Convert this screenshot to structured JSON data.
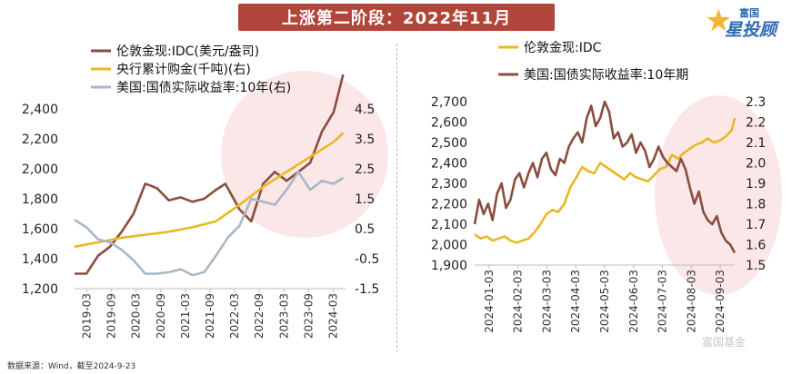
{
  "title": "上涨第二阶段：2022年11月",
  "logo": {
    "top": "富国",
    "main": "星投顾"
  },
  "source": "数据来源：Wind，截至2024-9-23",
  "watermark": "富国基金",
  "colors": {
    "brown": "#8b4e3e",
    "gold": "#e8b923",
    "gray": "#a9b7c6",
    "banner": "#b2453a",
    "highlight": "#f6c9cc"
  },
  "chart_data": [
    {
      "type": "line",
      "legend": [
        "伦敦金现:IDC(美元/盎司)",
        "央行累计购金(千吨)(右)",
        "美国:国债实际收益率:10年(右)"
      ],
      "x_ticks": [
        "2019-03",
        "2019-09",
        "2020-03",
        "2020-09",
        "2021-03",
        "2021-09",
        "2022-03",
        "2022-09",
        "2023-03",
        "2023-09",
        "2024-03"
      ],
      "y_left_ticks": [
        "1,200",
        "1,400",
        "1,600",
        "1,800",
        "2,000",
        "2,200",
        "2,400"
      ],
      "y_right_ticks": [
        "-1.5",
        "-0.5",
        "0.5",
        "1.5",
        "2.5",
        "3.5",
        "4.5"
      ],
      "ylim_left": [
        1200,
        2400
      ],
      "ylim_right": [
        -1.5,
        4.5
      ],
      "x_range": [
        2019.0,
        2024.75
      ],
      "series": [
        {
          "name": "伦敦金现:IDC(美元/盎司)",
          "axis": "left",
          "color": "#8b4e3e",
          "x": [
            2019.0,
            2019.25,
            2019.5,
            2019.75,
            2020.0,
            2020.25,
            2020.5,
            2020.6,
            2020.75,
            2021.0,
            2021.25,
            2021.5,
            2021.75,
            2022.0,
            2022.2,
            2022.5,
            2022.75,
            2023.0,
            2023.25,
            2023.5,
            2023.75,
            2024.0,
            2024.25,
            2024.5,
            2024.7
          ],
          "values": [
            1300,
            1300,
            1420,
            1480,
            1580,
            1700,
            1900,
            1890,
            1870,
            1790,
            1810,
            1780,
            1800,
            1860,
            1900,
            1730,
            1650,
            1900,
            1980,
            1920,
            1980,
            2040,
            2250,
            2380,
            2630
          ]
        },
        {
          "name": "央行累计购金(千吨)(右)",
          "axis": "right",
          "color": "#e8b923",
          "x": [
            2019.0,
            2019.5,
            2020.0,
            2020.5,
            2021.0,
            2021.5,
            2022.0,
            2022.5,
            2023.0,
            2023.5,
            2024.0,
            2024.5,
            2024.7
          ],
          "values": [
            -0.1,
            0.05,
            0.2,
            0.3,
            0.4,
            0.55,
            0.75,
            1.3,
            1.9,
            2.4,
            2.9,
            3.4,
            3.7
          ]
        },
        {
          "name": "美国:国债实际收益率:10年(右)",
          "axis": "right",
          "color": "#a9b7c6",
          "x": [
            2019.0,
            2019.25,
            2019.5,
            2019.75,
            2020.0,
            2020.25,
            2020.5,
            2020.75,
            2021.0,
            2021.25,
            2021.5,
            2021.75,
            2022.0,
            2022.25,
            2022.5,
            2022.75,
            2023.0,
            2023.25,
            2023.5,
            2023.75,
            2024.0,
            2024.25,
            2024.5,
            2024.7
          ],
          "values": [
            0.8,
            0.55,
            0.15,
            0.05,
            -0.2,
            -0.55,
            -1.0,
            -1.0,
            -0.95,
            -0.85,
            -1.05,
            -0.95,
            -0.4,
            0.2,
            0.6,
            1.5,
            1.4,
            1.3,
            1.8,
            2.4,
            1.8,
            2.1,
            2.0,
            2.2
          ]
        }
      ]
    },
    {
      "type": "line",
      "legend": [
        "伦敦金现:IDC",
        "美国:国债实际收益率:10年期"
      ],
      "x_ticks": [
        "2024-01-03",
        "2024-02-03",
        "2024-03-03",
        "2024-04-03",
        "2024-05-03",
        "2024-06-03",
        "2024-07-03",
        "2024-08-03",
        "2024-09-03"
      ],
      "y_left_ticks": [
        "1,900",
        "2,000",
        "2,100",
        "2,200",
        "2,300",
        "2,400",
        "2,500",
        "2,600",
        "2,700"
      ],
      "y_right_ticks": [
        "1.5",
        "1.6",
        "1.7",
        "1.8",
        "1.9",
        "2.0",
        "2.1",
        "2.2",
        "2.3"
      ],
      "ylim_left": [
        1900,
        2700
      ],
      "ylim_right": [
        1.5,
        2.3
      ],
      "x_range": [
        0,
        8.7
      ],
      "series": [
        {
          "name": "伦敦金现:IDC",
          "axis": "left",
          "color": "#e8b923",
          "x": [
            0,
            0.2,
            0.4,
            0.6,
            0.8,
            1.0,
            1.2,
            1.4,
            1.6,
            1.8,
            2.0,
            2.2,
            2.4,
            2.6,
            2.8,
            3.0,
            3.2,
            3.4,
            3.6,
            3.8,
            4.0,
            4.2,
            4.4,
            4.6,
            4.8,
            5.0,
            5.2,
            5.4,
            5.6,
            5.8,
            6.0,
            6.2,
            6.4,
            6.6,
            6.8,
            7.0,
            7.2,
            7.4,
            7.6,
            7.8,
            8.0,
            8.2,
            8.4,
            8.6,
            8.7
          ],
          "values": [
            2050,
            2030,
            2040,
            2020,
            2030,
            2040,
            2020,
            2010,
            2020,
            2030,
            2060,
            2100,
            2150,
            2170,
            2160,
            2200,
            2280,
            2330,
            2380,
            2360,
            2350,
            2400,
            2380,
            2360,
            2340,
            2320,
            2350,
            2330,
            2320,
            2310,
            2340,
            2370,
            2380,
            2440,
            2420,
            2450,
            2470,
            2490,
            2500,
            2520,
            2500,
            2510,
            2530,
            2560,
            2620
          ]
        },
        {
          "name": "美国:国债实际收益率:10年期",
          "axis": "right",
          "color": "#8b4e3e",
          "x": [
            0,
            0.15,
            0.3,
            0.45,
            0.6,
            0.75,
            0.9,
            1.05,
            1.2,
            1.35,
            1.5,
            1.65,
            1.8,
            1.95,
            2.1,
            2.25,
            2.4,
            2.55,
            2.7,
            2.85,
            3.0,
            3.15,
            3.3,
            3.45,
            3.6,
            3.75,
            3.9,
            4.05,
            4.2,
            4.35,
            4.5,
            4.65,
            4.8,
            4.95,
            5.1,
            5.25,
            5.4,
            5.55,
            5.7,
            5.85,
            6.0,
            6.15,
            6.3,
            6.45,
            6.6,
            6.75,
            6.9,
            7.05,
            7.2,
            7.35,
            7.5,
            7.65,
            7.8,
            7.95,
            8.1,
            8.25,
            8.4,
            8.55,
            8.7
          ],
          "values": [
            1.7,
            1.82,
            1.75,
            1.8,
            1.72,
            1.85,
            1.9,
            1.78,
            1.82,
            1.92,
            1.95,
            1.88,
            1.95,
            2.0,
            1.93,
            2.02,
            2.05,
            1.97,
            1.94,
            2.02,
            2.0,
            2.08,
            2.12,
            2.15,
            2.1,
            2.22,
            2.28,
            2.18,
            2.22,
            2.3,
            2.25,
            2.12,
            2.15,
            2.08,
            2.1,
            2.14,
            2.05,
            2.1,
            2.06,
            1.98,
            2.02,
            2.08,
            2.03,
            2.0,
            1.98,
            1.96,
            2.02,
            1.97,
            1.88,
            1.8,
            1.86,
            1.76,
            1.72,
            1.7,
            1.74,
            1.66,
            1.62,
            1.6,
            1.56
          ]
        }
      ]
    }
  ]
}
